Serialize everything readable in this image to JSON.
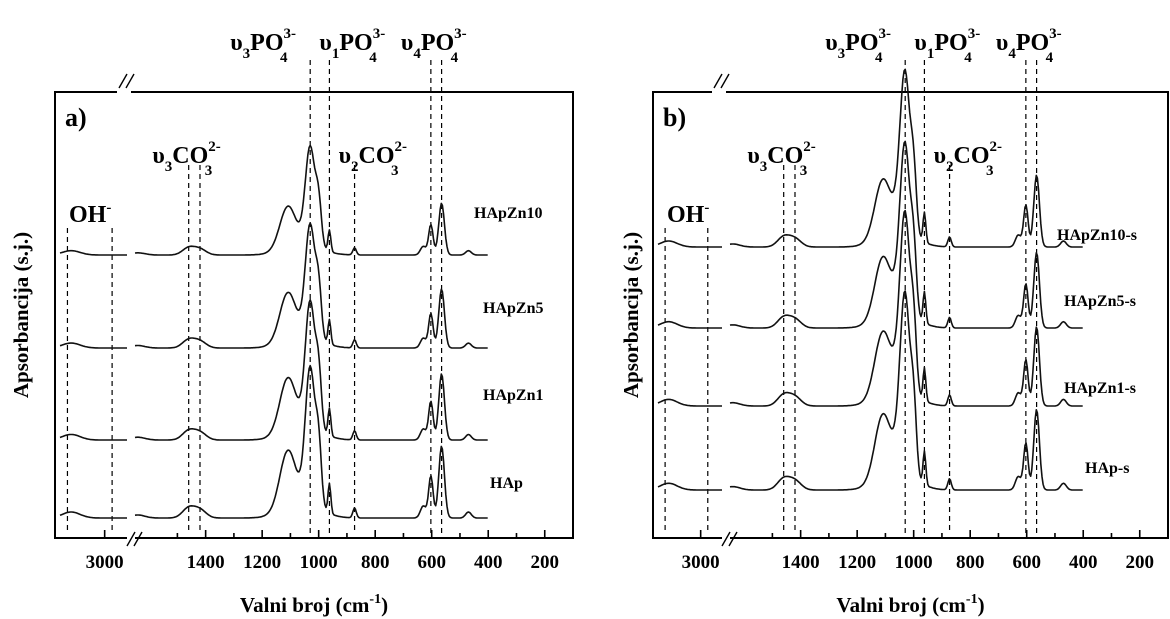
{
  "chart_data": [
    {
      "type": "line",
      "panel": "a)",
      "xlabel_main": "Valni broj (cm",
      "xlabel_sup": "-1",
      "xlabel_close": ")",
      "ylabel": "Apsorbancija (s.j.)",
      "x_ticks_left": [
        3000
      ],
      "x_ticks_right": [
        1400,
        1200,
        1000,
        800,
        600,
        400,
        200
      ],
      "x_axis_broken": true,
      "y_ticks": "none",
      "series": [
        {
          "name": "HApZn10"
        },
        {
          "name": "HApZn5"
        },
        {
          "name": "HApZn1"
        },
        {
          "name": "HAp"
        }
      ],
      "annotations": {
        "oh": {
          "base": "OH",
          "sup": "-"
        },
        "co3_v3": {
          "sym": "υ",
          "sub1": "3",
          "base": "CO",
          "sub2": "3",
          "sup": "2-"
        },
        "co3_v2": {
          "sym": "υ",
          "sub1": "2",
          "base": "CO",
          "sub2": "3",
          "sup": "2-"
        },
        "po4_v3": {
          "sym": "υ",
          "sub1": "3",
          "base": "PO",
          "sub2": "4",
          "sup": "3-"
        },
        "po4_v1": {
          "sym": "υ",
          "sub1": "1",
          "base": "PO",
          "sub2": "4",
          "sup": "3-"
        },
        "po4_v4": {
          "sym": "υ",
          "sub1": "4",
          "base": "PO",
          "sub2": "4",
          "sup": "3-"
        }
      },
      "reference_lines": [
        3500,
        2900,
        1460,
        1420,
        1030,
        962,
        873,
        603,
        565
      ]
    },
    {
      "type": "line",
      "panel": "b)",
      "xlabel_main": "Valni broj (cm",
      "xlabel_sup": "-1",
      "xlabel_close": ")",
      "ylabel": "Apsorbancija (s.j.)",
      "x_ticks_left": [
        3000
      ],
      "x_ticks_right": [
        1400,
        1200,
        1000,
        800,
        600,
        400,
        200
      ],
      "x_axis_broken": true,
      "y_ticks": "none",
      "series": [
        {
          "name": "HApZn10-s"
        },
        {
          "name": "HApZn5-s"
        },
        {
          "name": "HApZn1-s"
        },
        {
          "name": "HAp-s"
        }
      ],
      "annotations": {
        "oh": {
          "base": "OH",
          "sup": "-"
        },
        "co3_v3": {
          "sym": "υ",
          "sub1": "3",
          "base": "CO",
          "sub2": "3",
          "sup": "2-"
        },
        "co3_v2": {
          "sym": "υ",
          "sub1": "2",
          "base": "CO",
          "sub2": "3",
          "sup": "2-"
        },
        "po4_v3": {
          "sym": "υ",
          "sub1": "3",
          "base": "PO",
          "sub2": "4",
          "sup": "3-"
        },
        "po4_v1": {
          "sym": "υ",
          "sub1": "1",
          "base": "PO",
          "sub2": "4",
          "sup": "3-"
        },
        "po4_v4": {
          "sym": "υ",
          "sub1": "4",
          "base": "PO",
          "sub2": "4",
          "sup": "3-"
        }
      },
      "reference_lines": [
        3500,
        2900,
        1460,
        1420,
        1030,
        962,
        873,
        603,
        565
      ]
    }
  ]
}
